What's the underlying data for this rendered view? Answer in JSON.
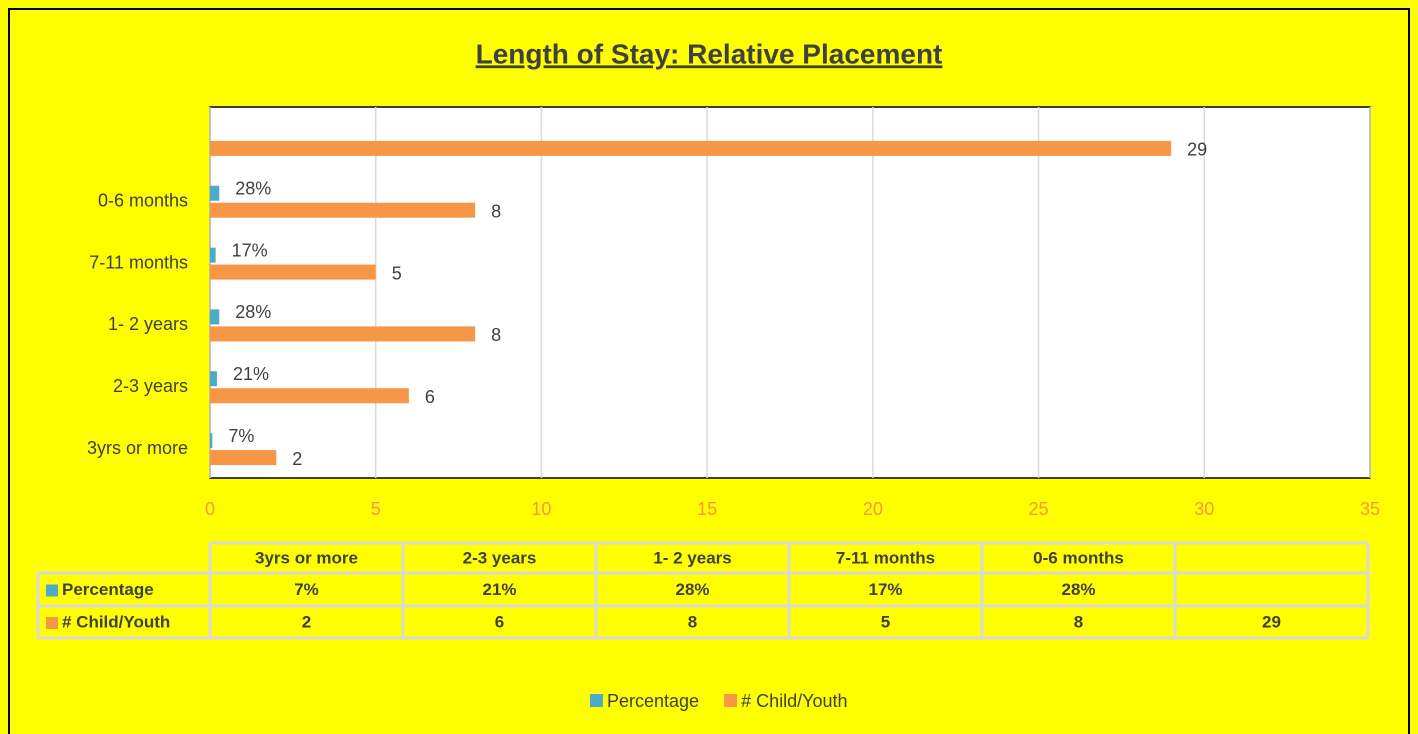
{
  "chart_data": {
    "type": "bar",
    "orientation": "horizontal",
    "title": "Length of Stay: Relative Placement",
    "categories": [
      "3yrs or more",
      "2-3 years",
      "1- 2 years",
      "7-11 months",
      "0-6 months",
      null
    ],
    "series": [
      {
        "name": "Percentage",
        "color": "#4bacc6",
        "values": [
          0.07,
          0.21,
          0.28,
          0.17,
          0.28,
          null
        ],
        "value_labels": [
          "7%",
          "21%",
          "28%",
          "17%",
          "28%",
          null
        ]
      },
      {
        "name": "# Child/Youth",
        "color": "#f79646",
        "values": [
          2,
          6,
          8,
          5,
          8,
          29
        ]
      }
    ],
    "xlim": [
      0,
      35
    ],
    "xticks": [
      0,
      5,
      10,
      15,
      20,
      25,
      30,
      35
    ],
    "grid": true,
    "legend": "bottom"
  }
}
